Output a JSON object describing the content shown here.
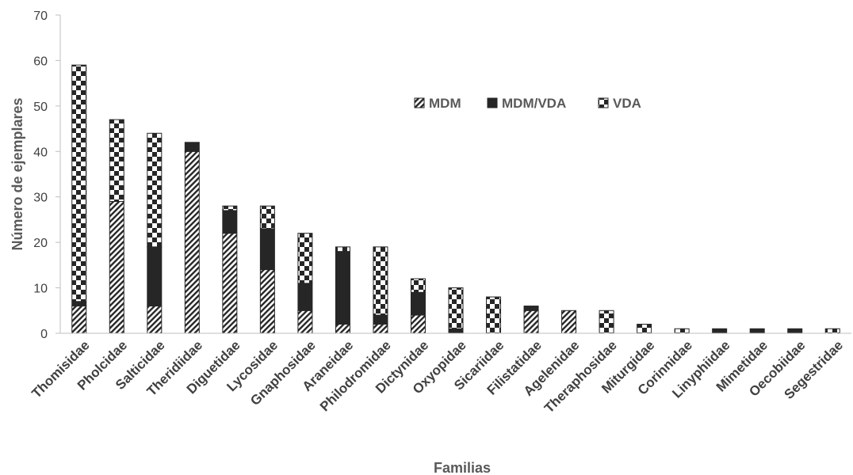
{
  "chart_data": {
    "type": "bar",
    "stacked": true,
    "xlabel": "Familias",
    "ylabel": "Número de ejemplares",
    "ylim": [
      0,
      70
    ],
    "yticks": [
      0,
      10,
      20,
      30,
      40,
      50,
      60,
      70
    ],
    "grid": false,
    "legend_position": "top-center",
    "categories": [
      "Thomisidae",
      "Pholcidae",
      "Salticidae",
      "Theridiidae",
      "Diguetidae",
      "Lycosidae",
      "Gnaphosidae",
      "Araneidae",
      "Philodromidae",
      "Dictynidae",
      "Oxyopidae",
      "Sicariidae",
      "Filistatidae",
      "Agelenidae",
      "Theraphosidae",
      "Miturgidae",
      "Corinnidae",
      "Linyphiidae",
      "Mimetidae",
      "Oecobiidae",
      "Segestridae"
    ],
    "series": [
      {
        "name": "MDM",
        "pattern": "diagonal-hatch",
        "values": [
          6,
          29,
          6,
          40,
          22,
          14,
          5,
          2,
          2,
          4,
          0,
          0,
          5,
          5,
          0,
          0,
          0,
          0,
          0,
          0,
          0
        ]
      },
      {
        "name": "MDM/VDA",
        "pattern": "solid",
        "color": "#262626",
        "values": [
          1,
          0,
          13,
          2,
          5,
          9,
          6,
          16,
          2,
          5,
          1,
          0,
          1,
          0,
          0,
          0,
          0,
          1,
          1,
          1,
          0
        ]
      },
      {
        "name": "VDA",
        "pattern": "checkerboard",
        "values": [
          52,
          18,
          25,
          0,
          1,
          5,
          11,
          1,
          15,
          3,
          9,
          8,
          0,
          0,
          5,
          2,
          1,
          0,
          0,
          0,
          1
        ]
      }
    ]
  }
}
